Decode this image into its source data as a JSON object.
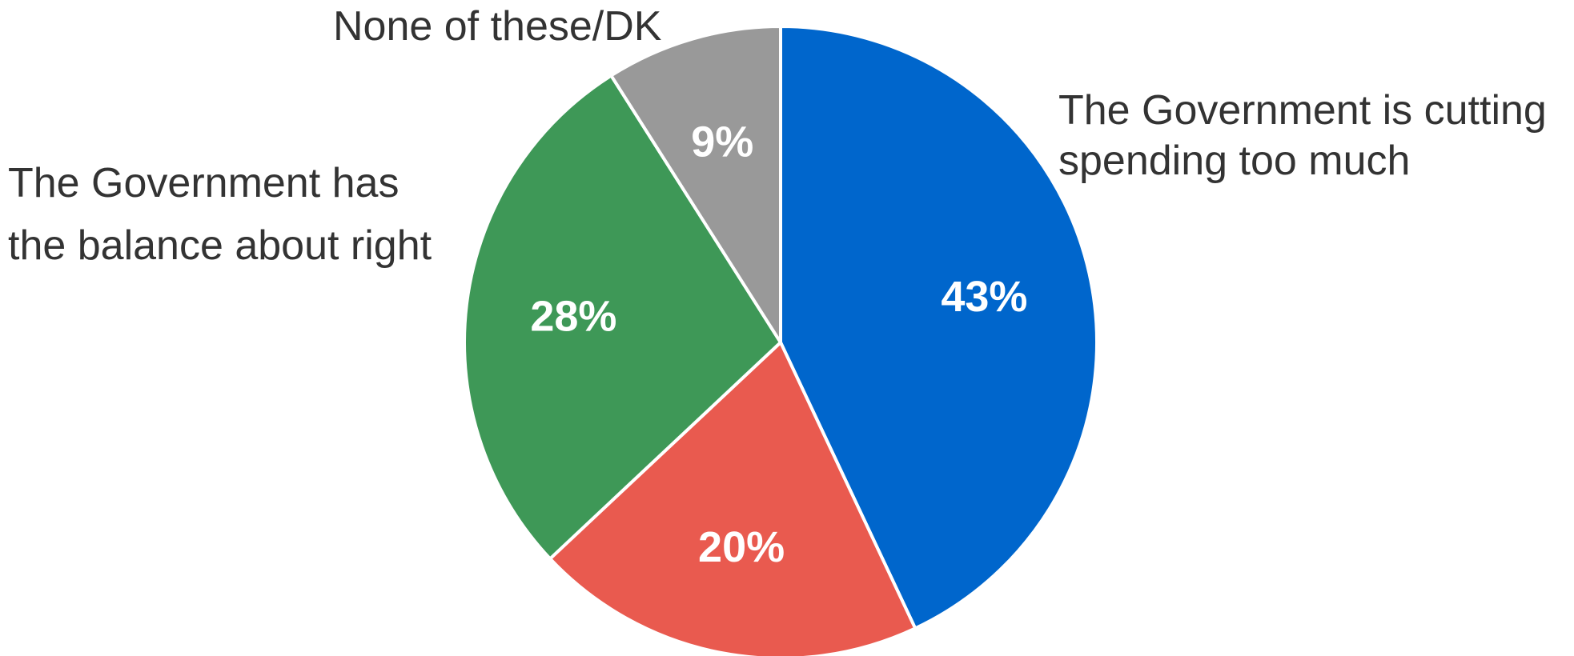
{
  "chart_data": {
    "type": "pie",
    "slices": [
      {
        "label": "The Government is cutting spending too much",
        "label_lines": [
          "The Government is cutting",
          "spending too much"
        ],
        "value": 43,
        "value_label": "43%",
        "color": "#0066cc"
      },
      {
        "label": "",
        "label_lines": [],
        "value": 20,
        "value_label": "20%",
        "color": "#e95a4f"
      },
      {
        "label": "The Government has the balance about right",
        "label_lines": [
          "The Government has",
          "the balance about right"
        ],
        "value": 28,
        "value_label": "28%",
        "color": "#3e9857"
      },
      {
        "label": "None of these/DK",
        "label_lines": [
          "None of these/DK"
        ],
        "value": 9,
        "value_label": "9%",
        "color": "#999999"
      }
    ],
    "start_angle": "12 o'clock",
    "direction": "clockwise",
    "legend": "none (direct labels)"
  }
}
